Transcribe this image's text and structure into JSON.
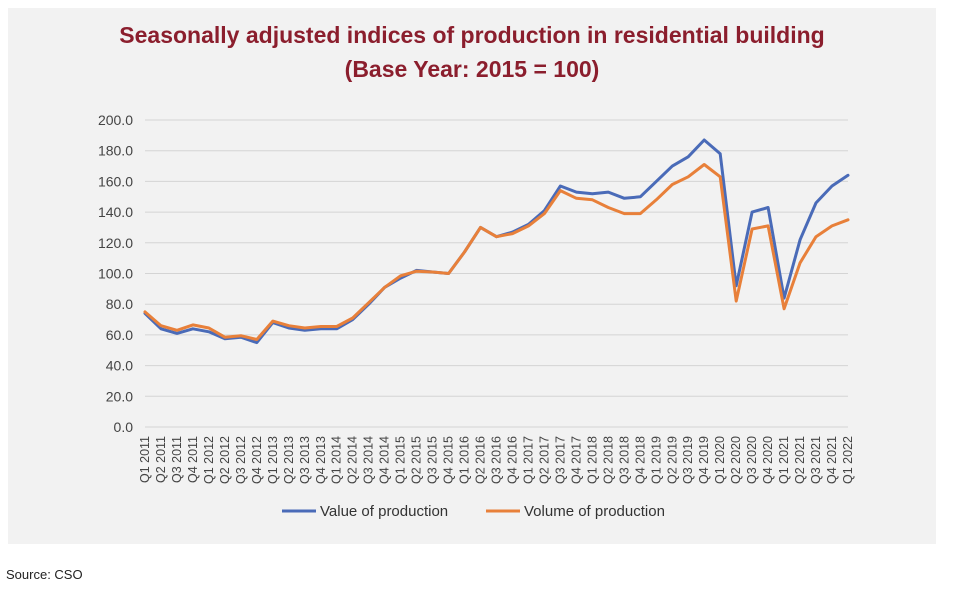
{
  "chart_data": {
    "type": "line",
    "title_line1": "Seasonally adjusted indices of production in residential building",
    "title_line2": "(Base Year: 2015 = 100)",
    "ylim": [
      0,
      200
    ],
    "yticks": [
      "200.0",
      "180.0",
      "160.0",
      "140.0",
      "120.0",
      "100.0",
      "80.0",
      "60.0",
      "40.0",
      "20.0",
      "0.0"
    ],
    "grid": true,
    "legend_position": "bottom",
    "categories": [
      "Q1 2011",
      "Q2 2011",
      "Q3 2011",
      "Q4 2011",
      "Q1 2012",
      "Q2 2012",
      "Q3 2012",
      "Q4 2012",
      "Q1 2013",
      "Q2 2013",
      "Q3 2013",
      "Q4 2013",
      "Q1 2014",
      "Q2 2014",
      "Q3 2014",
      "Q4 2014",
      "Q1 2015",
      "Q2 2015",
      "Q3 2015",
      "Q4 2015",
      "Q1 2016",
      "Q2 2016",
      "Q3 2016",
      "Q4 2016",
      "Q1 2017",
      "Q2 2017",
      "Q3 2017",
      "Q4 2017",
      "Q1 2018",
      "Q2 2018",
      "Q3 2018",
      "Q4 2018",
      "Q1 2019",
      "Q2 2019",
      "Q3 2019",
      "Q4 2019",
      "Q1 2020",
      "Q2 2020",
      "Q3 2020",
      "Q4 2020",
      "Q1 2021",
      "Q2 2021",
      "Q3 2021",
      "Q4 2021",
      "Q1 2022"
    ],
    "series": [
      {
        "name": "Value of production",
        "color": "#4a6bb8",
        "values": [
          74,
          64,
          61,
          64,
          62,
          57.5,
          58.5,
          55,
          68,
          64.5,
          63,
          64,
          64,
          70,
          80,
          91,
          97,
          102,
          101,
          100,
          114,
          130,
          124,
          127,
          132,
          141,
          157,
          153,
          152,
          153,
          149,
          150,
          160,
          170,
          176,
          187,
          178,
          92,
          140,
          143,
          84,
          122,
          146,
          157,
          164
        ]
      },
      {
        "name": "Volume of production",
        "color": "#e8803a",
        "values": [
          75,
          66,
          63,
          66.5,
          64.5,
          58.5,
          59.5,
          57,
          69,
          66,
          64.5,
          65.5,
          65.5,
          71,
          81,
          91,
          98.5,
          101.5,
          101,
          100,
          114,
          130,
          124,
          126,
          131,
          139,
          154,
          149,
          148,
          143,
          139,
          139,
          148,
          158,
          163,
          171,
          163,
          82,
          129,
          131,
          77,
          107,
          124,
          131,
          135
        ]
      }
    ],
    "source": "Source: CSO"
  }
}
